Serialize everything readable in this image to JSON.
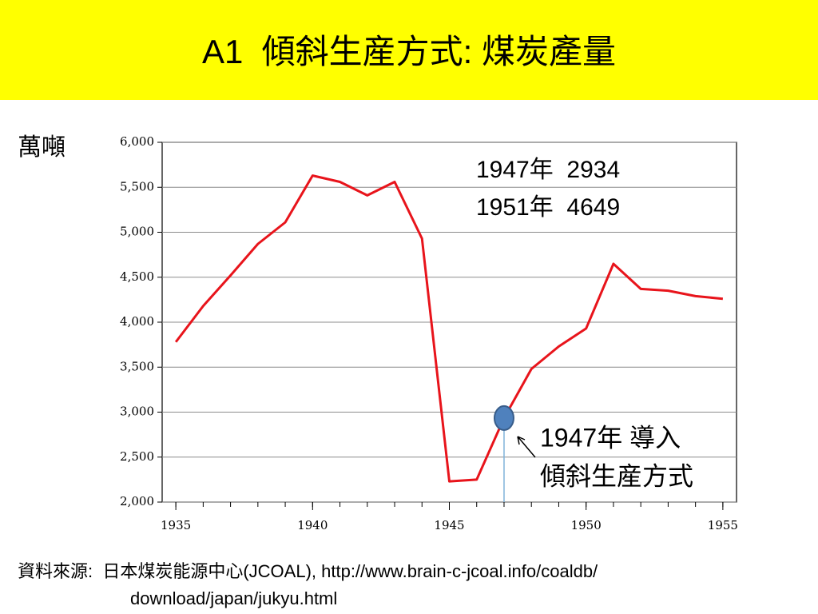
{
  "title": "A1  傾斜生産方式: 煤炭產量",
  "chart_data": {
    "type": "line",
    "y_label": "萬噸",
    "x": [
      1935,
      1936,
      1937,
      1938,
      1939,
      1940,
      1941,
      1942,
      1943,
      1944,
      1945,
      1946,
      1947,
      1948,
      1949,
      1950,
      1951,
      1952,
      1953,
      1954,
      1955
    ],
    "series": [
      {
        "name": "煤炭產量",
        "color": "#e8141b",
        "values": [
          3780,
          4180,
          4520,
          4870,
          5110,
          5630,
          5560,
          5410,
          5560,
          4930,
          2230,
          2250,
          2934,
          3480,
          3730,
          3930,
          4649,
          4370,
          4350,
          4290,
          4260
        ]
      }
    ],
    "xlim": [
      1934.5,
      1955.5
    ],
    "xticks": [
      1935,
      1940,
      1945,
      1950,
      1955
    ],
    "ylim": [
      2000,
      6000
    ],
    "yticks": [
      {
        "value": 2000,
        "label": "2,000"
      },
      {
        "value": 2500,
        "label": "2,500"
      },
      {
        "value": 3000,
        "label": "3,000"
      },
      {
        "value": 3500,
        "label": "3,500"
      },
      {
        "value": 4000,
        "label": "4,000"
      },
      {
        "value": 4500,
        "label": "4,500"
      },
      {
        "value": 5000,
        "label": "5,000"
      },
      {
        "value": 5500,
        "label": "5,500"
      },
      {
        "value": 6000,
        "label": "6,000"
      }
    ],
    "grid": true,
    "annotations": [
      "1947年  2934",
      "1951年  4649"
    ],
    "callout": [
      "1947年 導入",
      "傾斜生産方式"
    ]
  },
  "source": [
    "資料來源:  日本煤炭能源中心(JCOAL), http://www.brain-c-jcoal.info/coaldb/",
    "download/japan/jukyu.html"
  ]
}
